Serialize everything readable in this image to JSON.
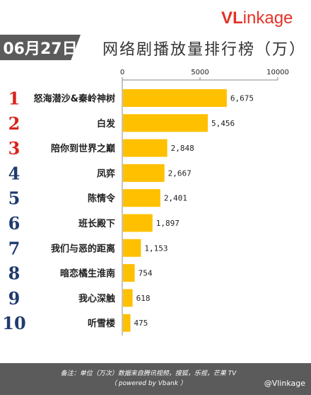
{
  "header": {
    "date": "06月27日",
    "title": "网络剧播放量排行榜（万）",
    "logo_v": "VL",
    "logo_rest": "inkage"
  },
  "footer": {
    "note_line1": "备注：单位（万次）数据来自腾讯视频，搜狐，乐视，芒果 TV",
    "note_line2": "（ powered by Vbank ）",
    "weibo": "@Vlinkage"
  },
  "colors": {
    "bar": "#FFC000",
    "rank_red": "#D9221C",
    "rank_blue": "#1F3A6E",
    "banner": "#5B5B5B"
  },
  "chart_data": {
    "type": "bar",
    "orientation": "horizontal",
    "title": "网络剧播放量排行榜（万）",
    "xlim": [
      0,
      10000
    ],
    "xticks": [
      "0",
      "5000",
      "10000"
    ],
    "ranks": [
      "1",
      "2",
      "3",
      "4",
      "5",
      "6",
      "7",
      "8",
      "9",
      "10"
    ],
    "categories": [
      "怒海潜沙&秦岭神树",
      "白发",
      "陪你到世界之巅",
      "凤弈",
      "陈情令",
      "班长殿下",
      "我们与恶的距离",
      "暗恋橘生淮南",
      "我心深触",
      "听雪楼"
    ],
    "values": [
      6675,
      5456,
      2848,
      2667,
      2401,
      1897,
      1153,
      754,
      618,
      475
    ],
    "value_labels": [
      "6,675",
      "5,456",
      "2,848",
      "2,667",
      "2,401",
      "1,897",
      "1,153",
      "754",
      "618",
      "475"
    ],
    "grid": false,
    "legend": "none"
  }
}
